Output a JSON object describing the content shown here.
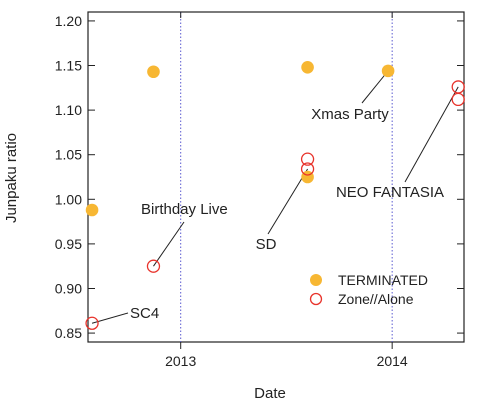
{
  "chart_data": {
    "type": "scatter",
    "xlabel": "Date",
    "ylabel": "Junpaku ratio",
    "xlim": [
      "2012-07-25",
      "2014-05-05"
    ],
    "ylim": [
      0.84,
      1.21
    ],
    "x_ticks": [
      {
        "date": "2013-01-01",
        "label": "2013"
      },
      {
        "date": "2014-01-01",
        "label": "2014"
      }
    ],
    "y_ticks": [
      {
        "value": 0.85,
        "label": "0.85"
      },
      {
        "value": 0.9,
        "label": "0.90"
      },
      {
        "value": 0.95,
        "label": "0.95"
      },
      {
        "value": 1.0,
        "label": "1.00"
      },
      {
        "value": 1.05,
        "label": "1.05"
      },
      {
        "value": 1.1,
        "label": "1.10"
      },
      {
        "value": 1.15,
        "label": "1.15"
      },
      {
        "value": 1.2,
        "label": "1.20"
      }
    ],
    "grid": false,
    "vertical_reference_lines": [
      "2013-01-01",
      "2014-01-01"
    ],
    "legend_position": "bottom-right",
    "series": [
      {
        "name": "TERMINATED",
        "color": "#f7b733",
        "marker": "filled-circle",
        "points": [
          {
            "x": "2012-08-01",
            "y": 0.988
          },
          {
            "x": "2012-11-15",
            "y": 1.143
          },
          {
            "x": "2013-08-08",
            "y": 1.148
          },
          {
            "x": "2013-08-08",
            "y": 1.025
          },
          {
            "x": "2013-12-25",
            "y": 1.144
          }
        ]
      },
      {
        "name": "Zone//Alone",
        "color": "#e8332b",
        "marker": "open-circle",
        "points": [
          {
            "x": "2012-08-01",
            "y": 0.861
          },
          {
            "x": "2012-11-15",
            "y": 0.925
          },
          {
            "x": "2013-08-08",
            "y": 1.034
          },
          {
            "x": "2013-08-08",
            "y": 1.045
          },
          {
            "x": "2014-04-25",
            "y": 1.126
          },
          {
            "x": "2014-04-25",
            "y": 1.112
          }
        ]
      }
    ],
    "annotations": [
      {
        "text": "SC4",
        "x": "2012-08-01",
        "y": 0.861
      },
      {
        "text": "Birthday Live",
        "x": "2012-11-15",
        "y": 0.925
      },
      {
        "text": "SD",
        "x": "2013-08-08",
        "y": 1.034
      },
      {
        "text": "Xmas Party",
        "x": "2013-12-25",
        "y": 1.144
      },
      {
        "text": "NEO FANTASIA",
        "x": "2014-04-25",
        "y": 1.126
      }
    ]
  }
}
